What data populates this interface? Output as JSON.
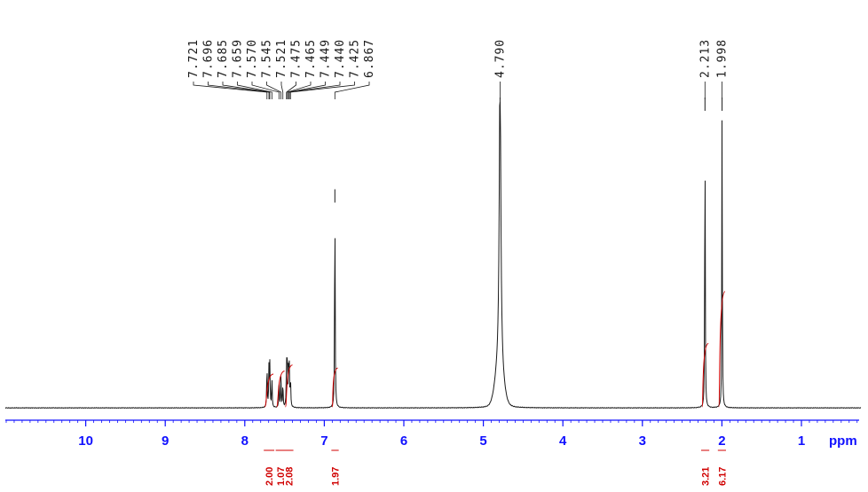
{
  "colors": {
    "spectrum": "#1a1a1a",
    "axis": "#1010ff",
    "integral": "#d00000",
    "peak_label": "#1a1a1a"
  },
  "chart_data": {
    "type": "line",
    "title": "",
    "xlabel": "ppm",
    "ylabel": "",
    "xlim": [
      11.0,
      -0.7
    ],
    "x_reversed": true,
    "ylim": [
      0,
      1.0
    ],
    "grid": false,
    "x_major_ticks": [
      10,
      9,
      8,
      7,
      6,
      5,
      4,
      3,
      2,
      1
    ],
    "x_tick_labels": [
      "10",
      "9",
      "8",
      "7",
      "6",
      "5",
      "4",
      "3",
      "2",
      "1"
    ],
    "x_minor_step": 0.1,
    "peak_labels": [
      "7.721",
      "7.696",
      "7.685",
      "7.659",
      "7.570",
      "7.545",
      "7.521",
      "7.475",
      "7.465",
      "7.449",
      "7.440",
      "7.425",
      "6.867",
      "4.790",
      "2.213",
      "1.998"
    ],
    "peaks": [
      {
        "ppm": 7.721,
        "height": 0.14
      },
      {
        "ppm": 7.696,
        "height": 0.13
      },
      {
        "ppm": 7.685,
        "height": 0.14
      },
      {
        "ppm": 7.659,
        "height": 0.1
      },
      {
        "ppm": 7.57,
        "height": 0.09
      },
      {
        "ppm": 7.545,
        "height": 0.1
      },
      {
        "ppm": 7.521,
        "height": 0.08
      },
      {
        "ppm": 7.475,
        "height": 0.15
      },
      {
        "ppm": 7.465,
        "height": 0.17
      },
      {
        "ppm": 7.449,
        "height": 0.14
      },
      {
        "ppm": 7.44,
        "height": 0.12
      },
      {
        "ppm": 7.425,
        "height": 0.09
      },
      {
        "ppm": 6.867,
        "height": 0.7
      },
      {
        "ppm": 4.79,
        "height": 1.0
      },
      {
        "ppm": 2.213,
        "height": 1.0
      },
      {
        "ppm": 1.998,
        "height": 1.0
      }
    ],
    "integrals": [
      {
        "label": "2.00",
        "from": 7.75,
        "to": 7.64,
        "height": 0.11
      },
      {
        "label": "1.07",
        "from": 7.6,
        "to": 7.5,
        "height": 0.12
      },
      {
        "label": "2.08",
        "from": 7.49,
        "to": 7.4,
        "height": 0.14
      },
      {
        "label": "1.97",
        "from": 6.9,
        "to": 6.83,
        "height": 0.13
      },
      {
        "label": "3.21",
        "from": 2.25,
        "to": 2.17,
        "height": 0.21
      },
      {
        "label": "6.17",
        "from": 2.04,
        "to": 1.96,
        "height": 0.38
      }
    ]
  }
}
